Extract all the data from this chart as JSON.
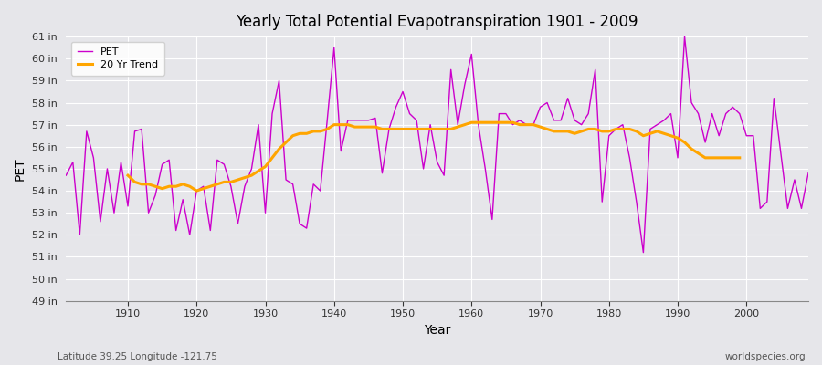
{
  "title": "Yearly Total Potential Evapotranspiration 1901 - 2009",
  "xlabel": "Year",
  "ylabel": "PET",
  "subtitle_left": "Latitude 39.25 Longitude -121.75",
  "subtitle_right": "worldspecies.org",
  "ylim": [
    49,
    61
  ],
  "yticks": [
    49,
    50,
    51,
    52,
    53,
    54,
    55,
    56,
    57,
    58,
    59,
    60,
    61
  ],
  "ytick_labels": [
    "49 in",
    "50 in",
    "51 in",
    "52 in",
    "53 in",
    "54 in",
    "55 in",
    "56 in",
    "57 in",
    "58 in",
    "59 in",
    "60 in",
    "61 in"
  ],
  "xlim": [
    1901,
    2009
  ],
  "xticks": [
    1910,
    1920,
    1930,
    1940,
    1950,
    1960,
    1970,
    1980,
    1990,
    2000
  ],
  "pet_color": "#CC00CC",
  "trend_color": "#FFA500",
  "bg_color": "#E6E6EA",
  "grid_color": "#FFFFFF",
  "legend_entries": [
    "PET",
    "20 Yr Trend"
  ],
  "years": [
    1901,
    1902,
    1903,
    1904,
    1905,
    1906,
    1907,
    1908,
    1909,
    1910,
    1911,
    1912,
    1913,
    1914,
    1915,
    1916,
    1917,
    1918,
    1919,
    1920,
    1921,
    1922,
    1923,
    1924,
    1925,
    1926,
    1927,
    1928,
    1929,
    1930,
    1931,
    1932,
    1933,
    1934,
    1935,
    1936,
    1937,
    1938,
    1939,
    1940,
    1941,
    1942,
    1943,
    1944,
    1945,
    1946,
    1947,
    1948,
    1949,
    1950,
    1951,
    1952,
    1953,
    1954,
    1955,
    1956,
    1957,
    1958,
    1959,
    1960,
    1961,
    1962,
    1963,
    1964,
    1965,
    1966,
    1967,
    1968,
    1969,
    1970,
    1971,
    1972,
    1973,
    1974,
    1975,
    1976,
    1977,
    1978,
    1979,
    1980,
    1981,
    1982,
    1983,
    1984,
    1985,
    1986,
    1987,
    1988,
    1989,
    1990,
    1991,
    1992,
    1993,
    1994,
    1995,
    1996,
    1997,
    1998,
    1999,
    2000,
    2001,
    2002,
    2003,
    2004,
    2005,
    2006,
    2007,
    2008,
    2009
  ],
  "pet_values": [
    54.7,
    55.3,
    52.0,
    56.7,
    55.5,
    52.6,
    55.0,
    53.0,
    55.3,
    53.3,
    56.7,
    56.8,
    53.0,
    53.8,
    55.2,
    55.4,
    52.2,
    53.6,
    52.0,
    54.0,
    54.2,
    52.2,
    55.4,
    55.2,
    54.2,
    52.5,
    54.2,
    55.0,
    57.0,
    53.0,
    57.5,
    59.0,
    54.5,
    54.3,
    52.5,
    52.3,
    54.3,
    54.0,
    57.2,
    60.5,
    55.8,
    57.2,
    57.2,
    57.2,
    57.2,
    57.3,
    54.8,
    56.8,
    57.8,
    58.5,
    57.5,
    57.2,
    55.0,
    57.0,
    55.3,
    54.7,
    59.5,
    57.0,
    58.8,
    60.2,
    57.0,
    55.0,
    52.7,
    57.5,
    57.5,
    57.0,
    57.2,
    57.0,
    57.0,
    57.8,
    58.0,
    57.2,
    57.2,
    58.2,
    57.2,
    57.0,
    57.5,
    59.5,
    53.5,
    56.5,
    56.8,
    57.0,
    55.5,
    53.5,
    51.2,
    56.8,
    57.0,
    57.2,
    57.5,
    55.5,
    61.0,
    58.0,
    57.5,
    56.2,
    57.5,
    56.5,
    57.5,
    57.8,
    57.5,
    56.5,
    56.5,
    53.2,
    53.5,
    58.2,
    55.7,
    53.2,
    54.5,
    53.2,
    54.8
  ],
  "trend_values": [
    null,
    null,
    null,
    null,
    null,
    null,
    null,
    null,
    null,
    54.7,
    54.4,
    54.3,
    54.3,
    54.2,
    54.1,
    54.2,
    54.2,
    54.3,
    54.2,
    54.0,
    54.1,
    54.2,
    54.3,
    54.4,
    54.4,
    54.5,
    54.6,
    54.7,
    54.9,
    55.1,
    55.5,
    55.9,
    56.2,
    56.5,
    56.6,
    56.6,
    56.7,
    56.7,
    56.8,
    57.0,
    57.0,
    57.0,
    56.9,
    56.9,
    56.9,
    56.9,
    56.8,
    56.8,
    56.8,
    56.8,
    56.8,
    56.8,
    56.8,
    56.8,
    56.8,
    56.8,
    56.8,
    56.9,
    57.0,
    57.1,
    57.1,
    57.1,
    57.1,
    57.1,
    57.1,
    57.1,
    57.0,
    57.0,
    57.0,
    56.9,
    56.8,
    56.7,
    56.7,
    56.7,
    56.6,
    56.7,
    56.8,
    56.8,
    56.7,
    56.7,
    56.8,
    56.8,
    56.8,
    56.7,
    56.5,
    56.6,
    56.7,
    56.6,
    56.5,
    56.4,
    56.2,
    55.9,
    55.7,
    55.5,
    55.5,
    55.5,
    55.5,
    55.5,
    55.5,
    null,
    null,
    null,
    null,
    null,
    null,
    null,
    null,
    null,
    null
  ]
}
